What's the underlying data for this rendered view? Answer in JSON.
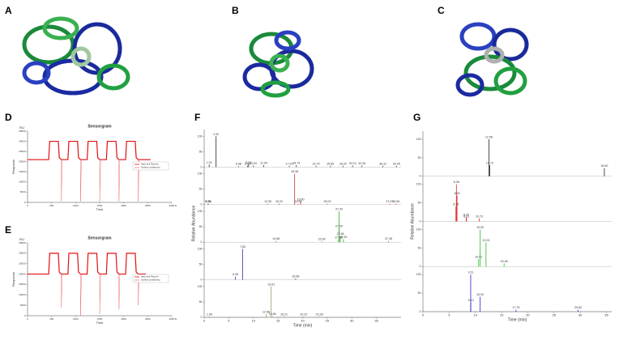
{
  "panel_labels": [
    "A",
    "B",
    "C",
    "D",
    "E",
    "F",
    "G"
  ],
  "chart_data": [
    {
      "type": "line",
      "title": "Sensorgram",
      "x_label": "Time",
      "y_label": "Response",
      "x_unit": "s",
      "y_unit": "RU",
      "x": [
        0,
        440,
        460,
        640,
        660,
        700,
        702,
        720,
        840,
        860,
        1040,
        1060,
        1100,
        1102,
        1120,
        1240,
        1260,
        1440,
        1460,
        1500,
        1502,
        1520,
        1640,
        1660,
        1840,
        1860,
        1900,
        1902,
        1920,
        2040,
        2060,
        2240,
        2260,
        2300,
        2302,
        2320,
        2560
      ],
      "series": [
        {
          "name": "Inject and Recover",
          "color": "#e01010",
          "values": [
            21000,
            21000,
            30000,
            30000,
            22000,
            21000,
            21000,
            21000,
            21000,
            30000,
            30000,
            22000,
            21000,
            21000,
            21000,
            21000,
            30000,
            30000,
            22000,
            21000,
            21000,
            21000,
            21000,
            30000,
            30000,
            22000,
            21000,
            21000,
            21000,
            21000,
            30000,
            30000,
            22000,
            21000,
            21000,
            21000,
            21000
          ]
        },
        {
          "name": "Surface conditioning",
          "color": "#f07070",
          "values": [
            null,
            null,
            null,
            null,
            null,
            21000,
            500,
            21000,
            null,
            null,
            null,
            null,
            21000,
            500,
            21000,
            null,
            null,
            null,
            null,
            21000,
            500,
            21000,
            null,
            null,
            null,
            null,
            21000,
            500,
            21000,
            null,
            null,
            null,
            null,
            21000,
            500,
            21000,
            null
          ]
        }
      ],
      "xlim": [
        0,
        3000
      ],
      "xticks": [
        0,
        500,
        1000,
        1500,
        2000,
        2500,
        3000
      ],
      "ylim": [
        0,
        35000
      ],
      "yticks": [
        0,
        5000,
        10000,
        15000,
        20000,
        25000,
        30000,
        35000
      ],
      "legend": "center right"
    },
    {
      "type": "line",
      "title": "Sensorgram",
      "x_label": "Time",
      "y_label": "Response",
      "x_unit": "s",
      "y_unit": "RU",
      "x": [
        0,
        440,
        460,
        640,
        660,
        700,
        702,
        720,
        840,
        860,
        1040,
        1060,
        1100,
        1102,
        1120,
        1240,
        1260,
        1440,
        1460,
        1500,
        1502,
        1520,
        1640,
        1660,
        1840,
        1860,
        1900,
        1902,
        1920,
        2040,
        2060,
        2240,
        2260,
        2300,
        2302,
        2320,
        2460
      ],
      "series": [
        {
          "name": "Inject and Recover",
          "color": "#e01010",
          "values": [
            20000,
            20000,
            30000,
            30000,
            21000,
            20000,
            20000,
            20000,
            20000,
            30000,
            30000,
            21000,
            20000,
            20000,
            20000,
            20000,
            30000,
            30000,
            21000,
            20000,
            20000,
            20000,
            20000,
            30000,
            30000,
            21000,
            20000,
            20000,
            20000,
            20000,
            30000,
            30000,
            21000,
            20000,
            20000,
            20000,
            20000
          ]
        },
        {
          "name": "Surface conditioning",
          "color": "#f07070",
          "values": [
            null,
            null,
            null,
            null,
            null,
            20000,
            4000,
            20000,
            null,
            null,
            null,
            null,
            20000,
            0,
            20000,
            null,
            null,
            null,
            null,
            20000,
            1000,
            20000,
            null,
            null,
            null,
            null,
            20000,
            3000,
            20000,
            null,
            null,
            null,
            null,
            20000,
            5000,
            20000,
            null
          ]
        }
      ],
      "xlim": [
        0,
        3000
      ],
      "xticks": [
        0,
        500,
        1000,
        1500,
        2000,
        2500,
        3000
      ],
      "ylim": [
        0,
        35000
      ],
      "yticks": [
        0,
        5000,
        10000,
        15000,
        20000,
        25000,
        30000,
        35000
      ],
      "legend": "center right"
    },
    {
      "type": "chromatogram",
      "x_label": "Time (min)",
      "y_label": "Relative Abundance",
      "xlim": [
        0,
        40
      ],
      "xticks": [
        0,
        5,
        10,
        15,
        20,
        25,
        30,
        35
      ],
      "ylim": [
        0,
        100
      ],
      "yticks": [
        0,
        50,
        100
      ],
      "series": [
        {
          "color": "#222222",
          "x": [
            1.02,
            2.42,
            6.98,
            8.8,
            9.02,
            10,
            12.09,
            17.29,
            18.73,
            22.74,
            25.65,
            28.2,
            30.15,
            32.05,
            36.31,
            39.05
          ],
          "values": [
            8,
            100,
            3,
            4,
            8,
            5,
            6,
            4,
            6,
            4,
            4,
            4,
            5,
            5,
            4,
            4
          ],
          "peak_labels": [
            "1.02",
            "2.42",
            "6.98",
            "8.80",
            "9.02",
            "10.00",
            "12.09",
            "17.29",
            "18.73",
            "22.74",
            "25.65",
            "28.20",
            "30.15",
            "32.05",
            "36.31",
            "39.05"
          ]
        },
        {
          "color": "#cc3333",
          "x": [
            0.86,
            0.75,
            12.95,
            15.22,
            19.08,
            18.38,
            19.6,
            25.03,
            37.67,
            38.96
          ],
          "values": [
            3,
            3,
            3,
            3,
            3,
            100,
            10,
            3,
            3,
            3
          ],
          "peak_labels": [
            "0.86",
            "0.75",
            "12.95",
            "15.22",
            "19.08",
            "18.38",
            "19.60",
            "25.03",
            "37.67",
            "38.96"
          ]
        },
        {
          "color": "#33aa33",
          "x": [
            14.58,
            23.9,
            27.32,
            27.39,
            27.42,
            27.66,
            28.3,
            37.45
          ],
          "values": [
            4,
            3,
            8,
            45,
            100,
            20,
            10,
            4
          ],
          "peak_labels": [
            "14.58",
            "23.90",
            "27.32",
            "27.39",
            "27.42",
            "27.66",
            "28.30",
            "37.45"
          ]
        },
        {
          "color": "#3333aa",
          "x": [
            6.35,
            7.83,
            18.58
          ],
          "values": [
            10,
            100,
            4
          ],
          "peak_labels": [
            "6.35",
            "7.83",
            "18.58"
          ]
        },
        {
          "color": "#999966",
          "x": [
            1.05,
            12.58,
            13.61,
            13.85,
            16.21,
            20.22,
            23.39
          ],
          "values": [
            3,
            10,
            100,
            4,
            3,
            3,
            3
          ],
          "peak_labels": [
            "1.05",
            "12.58",
            "13.61",
            "13.85",
            "16.21",
            "20.22",
            "23.39"
          ]
        }
      ]
    },
    {
      "type": "chromatogram",
      "x_label": "Time (min)",
      "y_label": "Relative Abundance",
      "xlim": [
        0,
        36
      ],
      "xticks": [
        0,
        5,
        10,
        15,
        20,
        25,
        30,
        35
      ],
      "ylim": [
        0,
        100
      ],
      "yticks": [
        0,
        50,
        100
      ],
      "series": [
        {
          "color": "#222222",
          "x": [
            12.58,
            12.73,
            34.6
          ],
          "values": [
            100,
            30,
            22
          ],
          "peak_labels": [
            "12.58",
            "12.73",
            "34.60"
          ]
        },
        {
          "color": "#dd2222",
          "x": [
            6.29,
            6.38,
            6.5,
            8.26,
            8.31,
            10.73
          ],
          "values": [
            40,
            100,
            70,
            12,
            8,
            8
          ],
          "peak_labels": [
            "6.29",
            "6.38",
            "6.50",
            "8.26",
            "8.31",
            "10.73"
          ]
        },
        {
          "color": "#22bb22",
          "x": [
            10.62,
            10.92,
            12.03,
            15.48
          ],
          "values": [
            20,
            100,
            65,
            8
          ],
          "peak_labels": [
            "10.62",
            "10.92",
            "12.03",
            "15.48"
          ]
        },
        {
          "color": "#2222cc",
          "x": [
            9.11,
            9.13,
            10.92,
            17.75,
            29.6
          ],
          "values": [
            100,
            25,
            40,
            5,
            5
          ],
          "peak_labels": [
            "9.11",
            "9.13",
            "10.92",
            "17.75",
            "29.60"
          ]
        }
      ]
    }
  ]
}
